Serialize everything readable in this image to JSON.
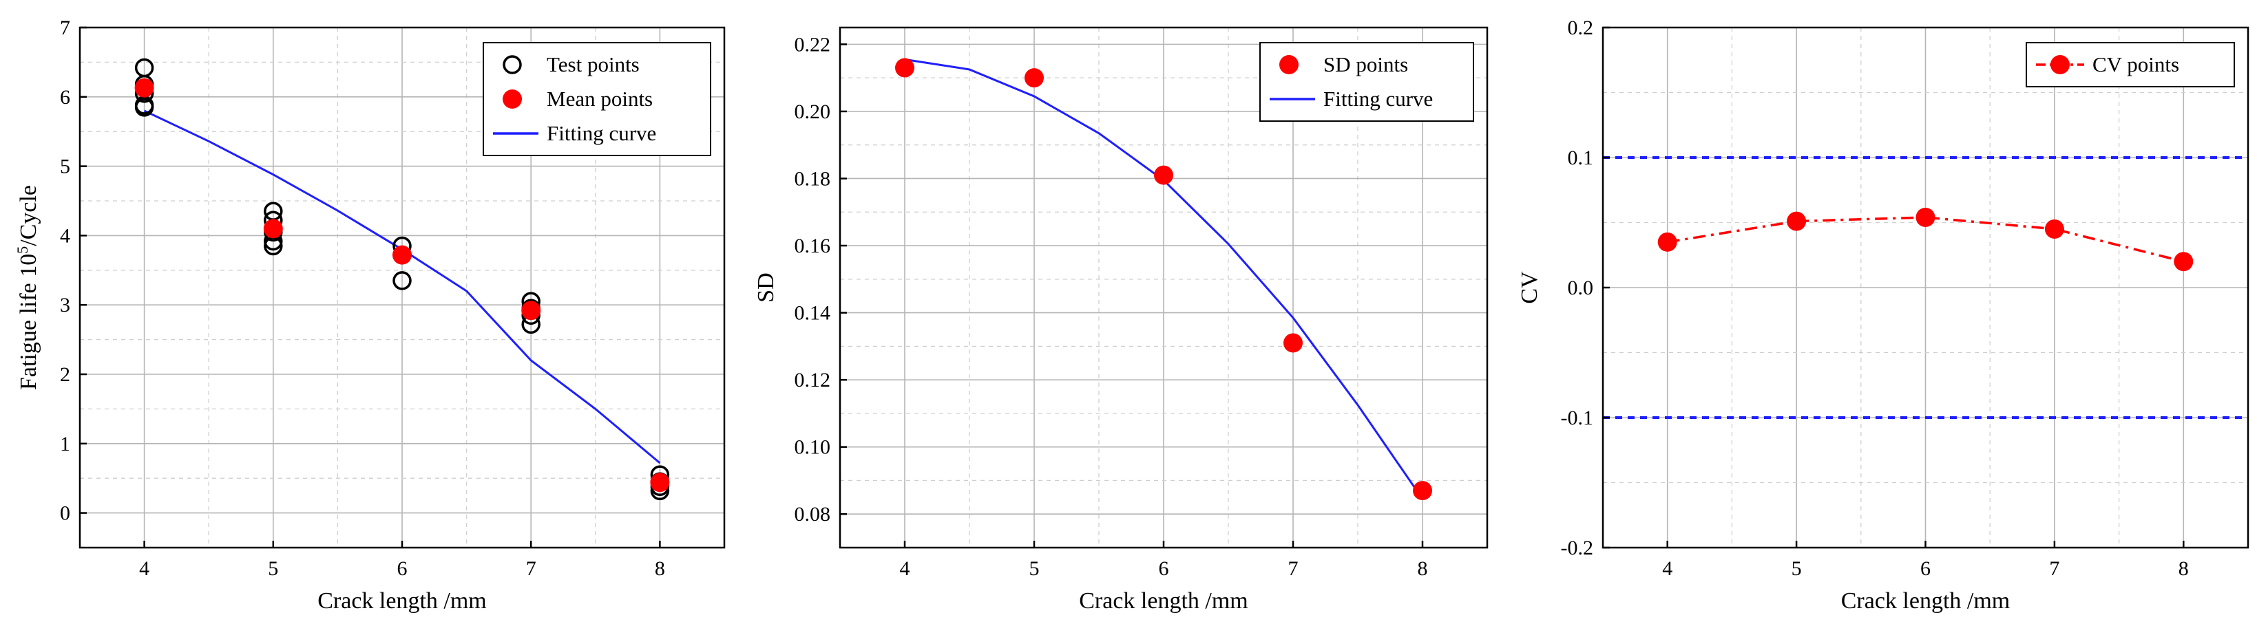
{
  "chart_data": [
    {
      "type": "scatter",
      "title": "",
      "xlabel": "Crack length /mm",
      "ylabel_main": "Fatigue life 10",
      "ylabel_sup": "5",
      "ylabel_tail": "/Cycle",
      "xlim": [
        3.5,
        8.5
      ],
      "ylim": [
        -0.5,
        7
      ],
      "xticks": [
        "4",
        "5",
        "6",
        "7",
        "8"
      ],
      "yticks": [
        "0",
        "1",
        "2",
        "3",
        "4",
        "5",
        "6",
        "7"
      ],
      "grid": true,
      "legend_position": "top-right",
      "series": [
        {
          "name": "Test points",
          "kind": "open-circle",
          "color": "#000000",
          "points": [
            [
              4,
              6.42
            ],
            [
              4,
              6.18
            ],
            [
              4,
              6.05
            ],
            [
              4,
              5.88
            ],
            [
              4,
              5.85
            ],
            [
              5,
              4.35
            ],
            [
              5,
              4.22
            ],
            [
              5,
              4.05
            ],
            [
              5,
              3.92
            ],
            [
              5,
              3.85
            ],
            [
              6,
              3.85
            ],
            [
              6,
              3.72
            ],
            [
              6,
              3.35
            ],
            [
              7,
              3.05
            ],
            [
              7,
              2.95
            ],
            [
              7,
              2.85
            ],
            [
              7,
              2.72
            ],
            [
              8,
              0.55
            ],
            [
              8,
              0.45
            ],
            [
              8,
              0.38
            ],
            [
              8,
              0.32
            ]
          ]
        },
        {
          "name": "Mean points",
          "kind": "filled-circle",
          "color": "#ff0000",
          "points": [
            [
              4,
              6.13
            ],
            [
              5,
              4.1
            ],
            [
              6,
              3.72
            ],
            [
              7,
              2.92
            ],
            [
              8,
              0.44
            ]
          ]
        },
        {
          "name": "Fitting curve",
          "kind": "line",
          "color": "#1f1fff",
          "points": [
            [
              4,
              5.8
            ],
            [
              4.5,
              5.36
            ],
            [
              5,
              4.88
            ],
            [
              5.5,
              4.36
            ],
            [
              6,
              3.8
            ],
            [
              6.5,
              3.2
            ],
            [
              7,
              2.2
            ],
            [
              7.5,
              1.5
            ],
            [
              8,
              0.72
            ]
          ]
        }
      ]
    },
    {
      "type": "scatter",
      "title": "",
      "xlabel": "Crack length /mm",
      "ylabel": "SD",
      "xlim": [
        3.5,
        8.5
      ],
      "ylim": [
        0.07,
        0.225
      ],
      "xticks": [
        "4",
        "5",
        "6",
        "7",
        "8"
      ],
      "yticks": [
        "0.08",
        "0.10",
        "0.12",
        "0.14",
        "0.16",
        "0.18",
        "0.20",
        "0.22"
      ],
      "grid": true,
      "legend_position": "top-right",
      "series": [
        {
          "name": "SD points",
          "kind": "filled-circle",
          "color": "#ff0000",
          "points": [
            [
              4,
              0.213
            ],
            [
              5,
              0.21
            ],
            [
              6,
              0.181
            ],
            [
              7,
              0.131
            ],
            [
              8,
              0.087
            ]
          ]
        },
        {
          "name": "Fitting curve",
          "kind": "line",
          "color": "#1f1fff",
          "points": [
            [
              4,
              0.2155
            ],
            [
              4.5,
              0.2125
            ],
            [
              5,
              0.2045
            ],
            [
              5.5,
              0.1935
            ],
            [
              6,
              0.1795
            ],
            [
              6.5,
              0.1605
            ],
            [
              7,
              0.1385
            ],
            [
              7.5,
              0.1125
            ],
            [
              8,
              0.0845
            ]
          ]
        }
      ]
    },
    {
      "type": "line",
      "title": "",
      "xlabel": "Crack length /mm",
      "ylabel": "CV",
      "xlim": [
        3.5,
        8.5
      ],
      "ylim": [
        -0.2,
        0.2
      ],
      "xticks": [
        "4",
        "5",
        "6",
        "7",
        "8"
      ],
      "yticks": [
        "-0.2",
        "-0.1",
        "0.0",
        "0.1",
        "0.2"
      ],
      "grid": true,
      "legend_position": "top-right",
      "reference_lines": [
        0.1,
        -0.1
      ],
      "series": [
        {
          "name": "CV points",
          "kind": "dashdot-line-with-markers",
          "color": "#ff0000",
          "points": [
            [
              4,
              0.035
            ],
            [
              5,
              0.051
            ],
            [
              6,
              0.054
            ],
            [
              7,
              0.045
            ],
            [
              8,
              0.02
            ]
          ]
        }
      ],
      "reference_color": "#1f1fff"
    }
  ]
}
